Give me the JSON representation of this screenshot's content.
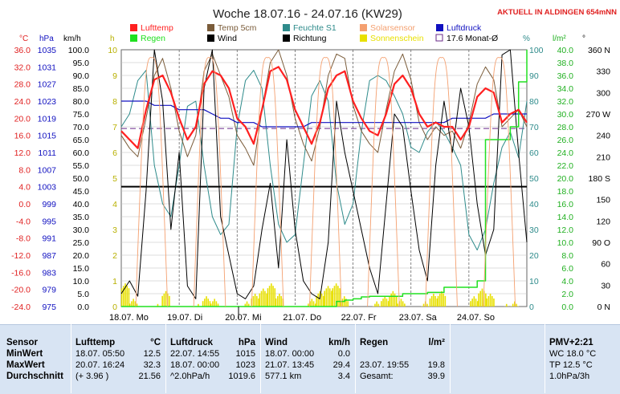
{
  "header": {
    "title": "Woche 18.07.16 - 24.07.16 (KW29)",
    "live": "AKTUELL IN ALDINGEN 654mNN"
  },
  "axis_units": {
    "temp": "°C",
    "press": "hPa",
    "wind": "km/h",
    "hours": "h",
    "pct": "%",
    "rain": "l/m²",
    "dir": "°"
  },
  "legend": [
    {
      "label": "Lufttemp",
      "color": "#ff2020"
    },
    {
      "label": "Temp 5cm",
      "color": "#7a5c3a"
    },
    {
      "label": "Feuchte S1",
      "color": "#2e8b8b"
    },
    {
      "label": "Solarsensor",
      "color": "#f4a070"
    },
    {
      "label": "Luftdruck",
      "color": "#1010c0"
    },
    {
      "label": "Regen",
      "color": "#20e020"
    },
    {
      "label": "Wind",
      "color": "#000000"
    },
    {
      "label": "Richtung",
      "color": "#000000"
    },
    {
      "label": "Sonnenschein",
      "color": "#e8e000"
    },
    {
      "label": "17.6 Monat-Ø",
      "color": "#6a2a8a"
    }
  ],
  "chart_data": {
    "type": "line",
    "x_labels": [
      "18.07. Mo",
      "19.07. Di",
      "20.07. Mi",
      "21.07. Do",
      "22.07. Fr",
      "23.07. Sa",
      "24.07. So"
    ],
    "ticks": {
      "temp": [
        "36.0",
        "32.0",
        "28.0",
        "24.0",
        "20.0",
        "16.0",
        "12.0",
        "8.0",
        "4.0",
        "0.0",
        "-4.0",
        "-8.0",
        "-12.0",
        "-16.0",
        "-20.0",
        "-24.0"
      ],
      "press": [
        "1035",
        "1031",
        "1027",
        "1023",
        "1019",
        "1015",
        "1011",
        "1007",
        "1003",
        "999",
        "995",
        "991",
        "987",
        "983",
        "979",
        "975"
      ],
      "wind": [
        "100.0",
        "95.0",
        "90.0",
        "85.0",
        "80.0",
        "75.0",
        "70.0",
        "65.0",
        "60.0",
        "55.0",
        "50.0",
        "45.0",
        "40.0",
        "35.0",
        "30.0",
        "25.0",
        "20.0",
        "15.0",
        "10.0",
        "5.0",
        "0.0"
      ],
      "hours": [
        "10",
        "9",
        "8",
        "7",
        "6",
        "5",
        "4",
        "3",
        "2",
        "1",
        "0"
      ],
      "pct": [
        "100",
        "90",
        "80",
        "70",
        "60",
        "50",
        "40",
        "30",
        "20",
        "10",
        "0"
      ],
      "rain": [
        "40.0",
        "38.0",
        "36.0",
        "34.0",
        "32.0",
        "30.0",
        "28.0",
        "26.0",
        "24.0",
        "22.0",
        "20.0",
        "18.0",
        "16.0",
        "14.0",
        "12.0",
        "10.0",
        "8.0",
        "6.0",
        "4.0",
        "2.0",
        "0.0"
      ],
      "dir": [
        "360 N",
        "330",
        "300",
        "270 W",
        "240",
        "210",
        "180 S",
        "150",
        "120",
        "90 O",
        "60",
        "30",
        "0 N"
      ]
    },
    "ylim_temp": [
      -24,
      36
    ],
    "ylim_press": [
      975,
      1035
    ],
    "ylim_wind": [
      0,
      100
    ],
    "ylim_rain": [
      0,
      40
    ],
    "reference_line_temp": 4.0,
    "monthly_avg_temp": 17.6,
    "series": [
      {
        "name": "Lufttemp",
        "key": "temp",
        "values": [
          17,
          15,
          13,
          22,
          29,
          30,
          26,
          20,
          15,
          18,
          28,
          31,
          30,
          27,
          20,
          18,
          14,
          22,
          31,
          32,
          29,
          22,
          18,
          14,
          19,
          27,
          30,
          31,
          24,
          20,
          17,
          16,
          21,
          28,
          30,
          27,
          21,
          18,
          19,
          18,
          18,
          15,
          18,
          25,
          27,
          26,
          19,
          21,
          22,
          19
        ]
      },
      {
        "name": "Temp 5cm",
        "key": "temp",
        "values": [
          16,
          13,
          11,
          20,
          30,
          34,
          27,
          17,
          11,
          16,
          31,
          35,
          30,
          25,
          16,
          13,
          9,
          22,
          33,
          36,
          30,
          20,
          14,
          10,
          18,
          30,
          35,
          34,
          23,
          17,
          14,
          12,
          22,
          31,
          35,
          29,
          19,
          15,
          18,
          16,
          17,
          13,
          19,
          28,
          32,
          29,
          18,
          20,
          22,
          18
        ]
      },
      {
        "name": "Feuchte S1",
        "key": "pct",
        "values": [
          70,
          75,
          88,
          92,
          55,
          40,
          35,
          55,
          78,
          80,
          55,
          35,
          28,
          32,
          70,
          88,
          92,
          85,
          55,
          32,
          25,
          28,
          55,
          82,
          88,
          80,
          48,
          32,
          40,
          68,
          88,
          90,
          88,
          82,
          75,
          62,
          60,
          68,
          72,
          68,
          62,
          55,
          28,
          22,
          30,
          48,
          62,
          68,
          58,
          80
        ]
      },
      {
        "name": "Luftdruck",
        "key": "press",
        "values": [
          1023,
          1023,
          1023,
          1023,
          1022,
          1022,
          1022,
          1021,
          1021,
          1021,
          1021,
          1020,
          1019,
          1019,
          1018,
          1018,
          1018,
          1017,
          1017,
          1017,
          1017,
          1017,
          1017,
          1018,
          1018,
          1018,
          1018,
          1018,
          1018,
          1018,
          1018,
          1018,
          1018,
          1018,
          1018,
          1018,
          1018,
          1018,
          1018,
          1018,
          1019,
          1019,
          1019,
          1019,
          1019,
          1020,
          1020,
          1020,
          1020,
          1020
        ]
      },
      {
        "name": "Wind",
        "key": "wind",
        "values": [
          5,
          10,
          4,
          45,
          100,
          80,
          30,
          60,
          8,
          3,
          85,
          100,
          35,
          20,
          5,
          3,
          8,
          30,
          48,
          15,
          65,
          30,
          10,
          5,
          3,
          25,
          80,
          60,
          45,
          30,
          15,
          5,
          40,
          75,
          70,
          45,
          22,
          10,
          55,
          80,
          60,
          85,
          70,
          40,
          20,
          30,
          98,
          100,
          60,
          25
        ]
      },
      {
        "name": "Regen",
        "key": "rain",
        "values": [
          0,
          0,
          0,
          0,
          0,
          0,
          0,
          0,
          0,
          0,
          0,
          0,
          0,
          0,
          0,
          0,
          0,
          0,
          0,
          0,
          0,
          0,
          0,
          0,
          0,
          0,
          0.8,
          1.0,
          1.2,
          1.5,
          1.6,
          1.6,
          1.6,
          1.6,
          2.0,
          2.0,
          2.0,
          2.2,
          2.2,
          3.0,
          3.0,
          3.0,
          3.0,
          4.0,
          26,
          26,
          26,
          28,
          35,
          40
        ]
      },
      {
        "name": "Sonnenschein",
        "key": "hours",
        "values": [
          0.9,
          0.3,
          0,
          0,
          0.1,
          0.6,
          0,
          0,
          0,
          0.1,
          0.4,
          0.3,
          0,
          0,
          0,
          0.2,
          0.5,
          0.7,
          0.9,
          0.5,
          0,
          0,
          0,
          0.3,
          0.6,
          0.8,
          0.9,
          0.4,
          0,
          0,
          0,
          0.2,
          0.4,
          0.6,
          0.3,
          0,
          0,
          0.2,
          0.5,
          0.6,
          0,
          0,
          0,
          0.4,
          0.7,
          0.5,
          0,
          0.1,
          0.2,
          0
        ]
      }
    ]
  },
  "stats": {
    "sensor": {
      "h": "Sensor",
      "rows": [
        "MinWert",
        "MaxWert",
        "Durchschnitt"
      ]
    },
    "lufttemp": {
      "h": "Lufttemp",
      "unit": "°C",
      "rows": [
        [
          "18.07. 05:50",
          "12.5"
        ],
        [
          "20.07. 16:24",
          "32.3"
        ],
        [
          "(+ 3.96 )",
          "21.56"
        ]
      ]
    },
    "luftdruck": {
      "h": "Luftdruck",
      "unit": "hPa",
      "rows": [
        [
          "22.07. 14:55",
          "1015"
        ],
        [
          "18.07. 00:00",
          "1023"
        ],
        [
          "^2.0hPa/h",
          "1019.6"
        ]
      ]
    },
    "wind": {
      "h": "Wind",
      "unit": "km/h",
      "rows": [
        [
          "18.07. 00:00",
          "0.0"
        ],
        [
          "21.07. 13:45",
          "29.4"
        ],
        [
          "577.1 km",
          "3.4"
        ]
      ]
    },
    "regen": {
      "h": "Regen",
      "unit": "l/m²",
      "rows": [
        [
          "",
          ""
        ],
        [
          "23.07. 19:55",
          "19.8"
        ],
        [
          "Gesamt:",
          "39.9"
        ]
      ]
    },
    "pmv": {
      "h": "PMV+2:21",
      "rows": [
        "WC 18.0 °C",
        "TP 12.5 °C",
        "1.0hPa/3h"
      ]
    }
  }
}
